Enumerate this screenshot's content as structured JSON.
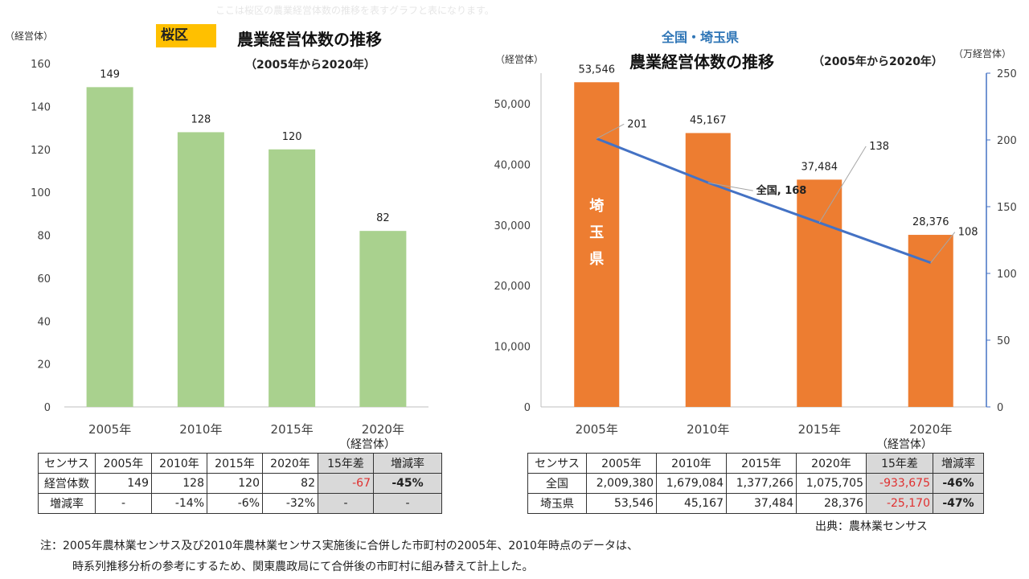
{
  "faint_header": "ここは桜区の農業経営体数の推移を表すグラフと表になります。",
  "left": {
    "y_unit": "（経営体）",
    "badge": "桜区",
    "title": "農業経営体数の推移",
    "subtitle": "（2005年から2020年）",
    "table_unit": "（経営体）",
    "table": {
      "header": [
        "センサス",
        "2005年",
        "2010年",
        "2015年",
        "2020年",
        "15年差",
        "増減率"
      ],
      "rows": [
        [
          "経営体数",
          "149",
          "128",
          "120",
          "82",
          "-67",
          "-45%"
        ],
        [
          "増減率",
          "-",
          "-14%",
          "-6%",
          "-32%",
          "-",
          "-"
        ]
      ]
    }
  },
  "right": {
    "y_unit_left": "（経営体）",
    "y_unit_right": "（万経営体）",
    "title_blue": "全国・埼玉県",
    "title": "農業経営体数の推移",
    "subtitle": "（2005年から2020年）",
    "bar_label": "埼玉県",
    "table_unit": "（経営体）",
    "table": {
      "header": [
        "センサス",
        "2005年",
        "2010年",
        "2015年",
        "2020年",
        "15年差",
        "増減率"
      ],
      "rows": [
        [
          "全国",
          "2,009,380",
          "1,679,084",
          "1,377,266",
          "1,075,705",
          "-933,675",
          "-46%"
        ],
        [
          "埼玉県",
          "53,546",
          "45,167",
          "37,484",
          "28,376",
          "-25,170",
          "-47%"
        ]
      ]
    },
    "source": "出典：農林業センサス"
  },
  "notes": [
    "注：2005年農林業センサス及び2010年農林業センサス実施後に合併した市町村の2005年、2010年時点のデータは、",
    "時系列推移分析の参考にするため、関東農政局にて合併後の市町村に組み替えて計上した。"
  ],
  "colors": {
    "green_bar": "#a9d18e",
    "orange_bar": "#ed7d31",
    "line": "#4472c4",
    "badge": "#ffc000",
    "blue_title": "#2e75b6"
  },
  "chart_data": [
    {
      "type": "bar",
      "title": "農業経営体数の推移",
      "categories": [
        "2005年",
        "2010年",
        "2015年",
        "2020年"
      ],
      "values": [
        149,
        128,
        120,
        82
      ],
      "ylabel": "（経営体）",
      "ylim": [
        0,
        160
      ],
      "yticks": [
        0,
        20,
        40,
        60,
        80,
        100,
        120,
        140,
        160
      ],
      "data_labels": [
        "149",
        "128",
        "120",
        "82"
      ],
      "grid": false
    },
    {
      "type": "bar+line",
      "title": "農業経営体数の推移",
      "categories": [
        "2005年",
        "2010年",
        "2015年",
        "2020年"
      ],
      "series": [
        {
          "name": "埼玉県",
          "type": "bar",
          "axis": "left",
          "values": [
            53546,
            45167,
            37484,
            28376
          ],
          "data_labels": [
            "53,546",
            "45,167",
            "37,484",
            "28,376"
          ]
        },
        {
          "name": "全国",
          "type": "line",
          "axis": "right",
          "values": [
            201,
            168,
            138,
            108
          ],
          "data_labels": [
            "201",
            "全国, 168",
            "138",
            "108"
          ]
        }
      ],
      "ylabel_left": "（経営体）",
      "ylabel_right": "（万経営体）",
      "ylim_left": [
        0,
        55000
      ],
      "ylim_right": [
        0,
        250
      ],
      "yticks_left": [
        0,
        10000,
        20000,
        30000,
        40000,
        50000
      ],
      "ytick_labels_left": [
        "0",
        "10,000",
        "20,000",
        "30,000",
        "40,000",
        "50,000"
      ],
      "yticks_right": [
        0,
        50,
        100,
        150,
        200,
        250
      ],
      "grid": false
    }
  ]
}
